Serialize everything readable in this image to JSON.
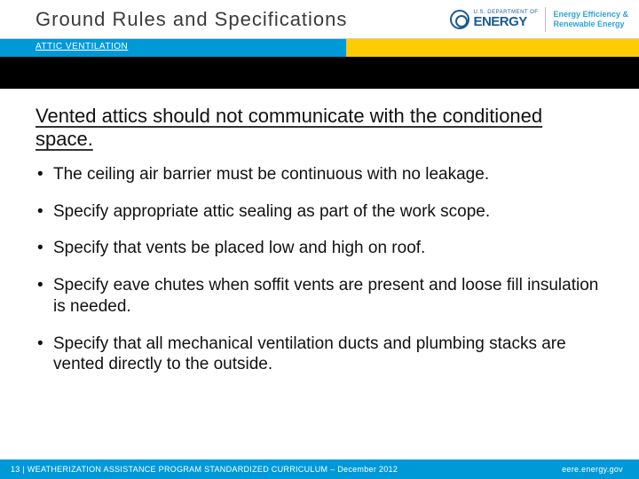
{
  "header": {
    "title": "Ground Rules and Specifications",
    "logo": {
      "dept_small": "U.S. DEPARTMENT OF",
      "dept_big": "ENERGY",
      "eere_line1": "Energy Efficiency &",
      "eere_line2": "Renewable Energy"
    }
  },
  "subheader": {
    "label": "ATTIC VENTILATION",
    "bar_color": "#0099d8",
    "accent_color": "#ffcb05"
  },
  "content": {
    "heading": "Vented attics should not communicate with the conditioned space.",
    "bullets": [
      "The ceiling air barrier must be continuous with no leakage.",
      "Specify appropriate attic sealing as part of the work scope.",
      "Specify that vents be placed low and high on roof.",
      "Specify eave chutes when soffit vents are present and loose fill insulation is needed.",
      "Specify that all mechanical ventilation ducts and plumbing stacks are vented directly to the outside."
    ]
  },
  "footer": {
    "left": "13 | WEATHERIZATION ASSISTANCE PROGRAM STANDARDIZED CURRICULUM – December 2012",
    "right": "eere.energy.gov",
    "background": "#0099d8"
  }
}
